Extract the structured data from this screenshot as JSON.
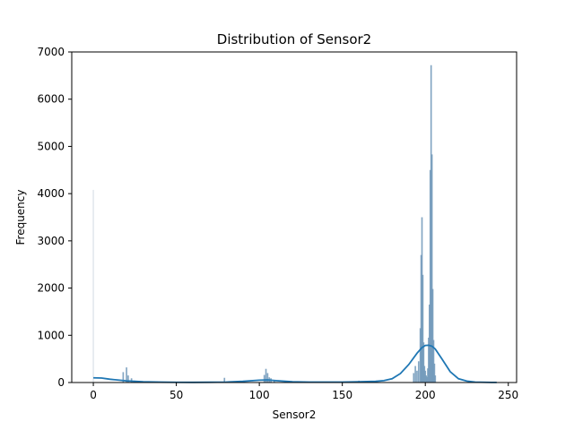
{
  "chart_data": {
    "type": "bar",
    "subtype": "histogram-with-kde",
    "title": "Distribution of Sensor2",
    "xlabel": "Sensor2",
    "ylabel": "Frequency",
    "xlim": [
      -13,
      255
    ],
    "ylim": [
      0,
      7000
    ],
    "x_ticks": [
      0,
      50,
      100,
      150,
      200,
      250
    ],
    "y_ticks": [
      0,
      1000,
      2000,
      3000,
      4000,
      5000,
      6000,
      7000
    ],
    "grid": false,
    "legend": "none",
    "bar_color": "#6f97b8",
    "kde_color": "#1f77b4",
    "bins": [
      {
        "x": 0,
        "count": 4080
      },
      {
        "x": 18,
        "count": 220
      },
      {
        "x": 20,
        "count": 320
      },
      {
        "x": 21,
        "count": 150
      },
      {
        "x": 23,
        "count": 90
      },
      {
        "x": 25,
        "count": 40
      },
      {
        "x": 79,
        "count": 100
      },
      {
        "x": 103,
        "count": 160
      },
      {
        "x": 104,
        "count": 290
      },
      {
        "x": 105,
        "count": 200
      },
      {
        "x": 106,
        "count": 110
      },
      {
        "x": 107,
        "count": 90
      },
      {
        "x": 109,
        "count": 40
      },
      {
        "x": 160,
        "count": 40
      },
      {
        "x": 193,
        "count": 200
      },
      {
        "x": 194,
        "count": 350
      },
      {
        "x": 195,
        "count": 250
      },
      {
        "x": 196,
        "count": 450
      },
      {
        "x": 197,
        "count": 1150
      },
      {
        "x": 197.5,
        "count": 2700
      },
      {
        "x": 198,
        "count": 3500
      },
      {
        "x": 198.5,
        "count": 2280
      },
      {
        "x": 199,
        "count": 850
      },
      {
        "x": 199.5,
        "count": 350
      },
      {
        "x": 200,
        "count": 250
      },
      {
        "x": 200.5,
        "count": 150
      },
      {
        "x": 201,
        "count": 120
      },
      {
        "x": 201.5,
        "count": 300
      },
      {
        "x": 202,
        "count": 950
      },
      {
        "x": 202.5,
        "count": 1650
      },
      {
        "x": 203,
        "count": 4500
      },
      {
        "x": 203.5,
        "count": 6720
      },
      {
        "x": 204,
        "count": 4830
      },
      {
        "x": 204.5,
        "count": 1980
      },
      {
        "x": 205,
        "count": 900
      },
      {
        "x": 205.5,
        "count": 400
      },
      {
        "x": 206,
        "count": 150
      }
    ],
    "kde": {
      "x": [
        0,
        5,
        10,
        20,
        30,
        40,
        50,
        60,
        70,
        80,
        90,
        100,
        105,
        110,
        120,
        130,
        140,
        150,
        160,
        170,
        175,
        180,
        185,
        190,
        195,
        198,
        200,
        202,
        204,
        206,
        210,
        215,
        220,
        225,
        230,
        240,
        243
      ],
      "y": [
        100,
        95,
        70,
        35,
        15,
        8,
        5,
        4,
        6,
        10,
        25,
        50,
        55,
        40,
        15,
        8,
        8,
        10,
        15,
        25,
        40,
        80,
        190,
        380,
        620,
        740,
        785,
        790,
        770,
        710,
        500,
        230,
        80,
        30,
        10,
        3,
        2
      ]
    }
  }
}
